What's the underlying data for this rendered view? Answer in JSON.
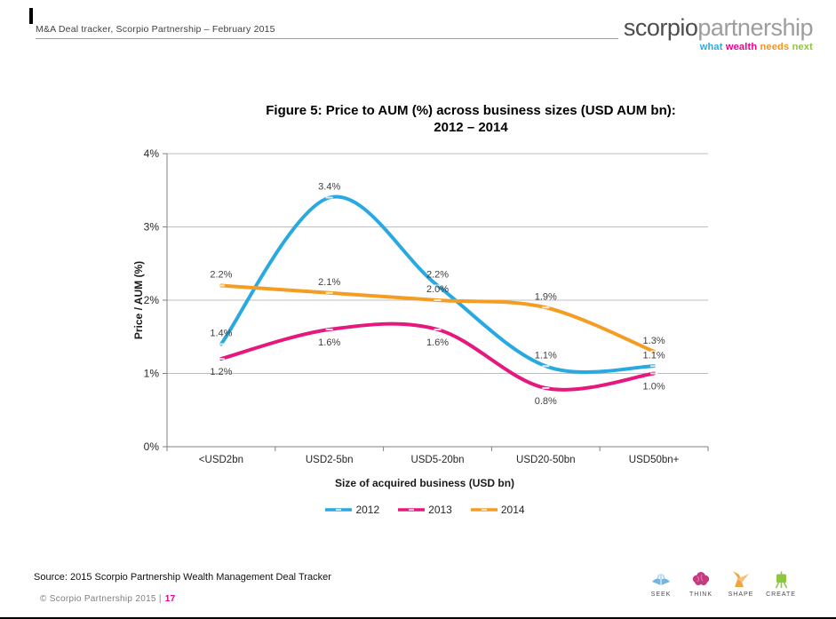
{
  "page": {
    "header": "M&A Deal tracker, Scorpio Partnership – February 2015",
    "logo": {
      "part1": "scorpio",
      "part2": "partnership",
      "tagline": [
        {
          "text": "what",
          "color": "#29abe2"
        },
        {
          "text": "wealth",
          "color": "#ec008c"
        },
        {
          "text": "needs",
          "color": "#f7941e"
        },
        {
          "text": "next",
          "color": "#8dc63f"
        }
      ]
    },
    "footer": {
      "source": "Source: 2015 Scorpio Partnership Wealth Management Deal Tracker",
      "copyright": "© Scorpio Partnership 2015 |",
      "page_number": "17",
      "icons": [
        {
          "name": "seek-icon",
          "label": "SEEK"
        },
        {
          "name": "think-icon",
          "label": "THINK"
        },
        {
          "name": "shape-icon",
          "label": "SHAPE"
        },
        {
          "name": "create-icon",
          "label": "CREATE"
        }
      ]
    }
  },
  "chart_data": {
    "type": "line",
    "smooth": true,
    "title_line1": "Figure 5: Price to AUM (%) across business sizes (USD AUM bn):",
    "title_line2": "2012 – 2014",
    "xlabel": "Size of acquired business (USD bn)",
    "ylabel": "Price / AUM (%)",
    "categories": [
      "<USD2bn",
      "USD2-5bn",
      "USD5-20bn",
      "USD20-50bn",
      "USD50bn+"
    ],
    "y_ticks": [
      {
        "value": 0,
        "label": "0%"
      },
      {
        "value": 1,
        "label": "1%"
      },
      {
        "value": 2,
        "label": "2%"
      },
      {
        "value": 3,
        "label": "3%"
      },
      {
        "value": 4,
        "label": "4%"
      }
    ],
    "ylim": [
      0,
      4
    ],
    "grid": true,
    "legend_position": "bottom",
    "axis_color": "#808080",
    "grid_color": "#bfbfbf",
    "label_color": "#3f3f3f",
    "series": [
      {
        "name": "2012",
        "color": "#29a9e1",
        "values": [
          1.4,
          3.4,
          2.2,
          1.1,
          1.1
        ],
        "labels": [
          "1.4%",
          "3.4%",
          "2.2%",
          "1.1%",
          "1.1%"
        ],
        "label_side": "above"
      },
      {
        "name": "2013",
        "color": "#e6187e",
        "values": [
          1.2,
          1.6,
          1.6,
          0.8,
          1.0
        ],
        "labels": [
          "1.2%",
          "1.6%",
          "1.6%",
          "0.8%",
          "1.0%"
        ],
        "label_side": "below"
      },
      {
        "name": "2014",
        "color": "#f59c23",
        "values": [
          2.2,
          2.1,
          2.0,
          1.9,
          1.3
        ],
        "labels": [
          "2.2%",
          "2.1%",
          "2.0%",
          "1.9%",
          "1.3%"
        ],
        "label_side": "above"
      }
    ]
  }
}
